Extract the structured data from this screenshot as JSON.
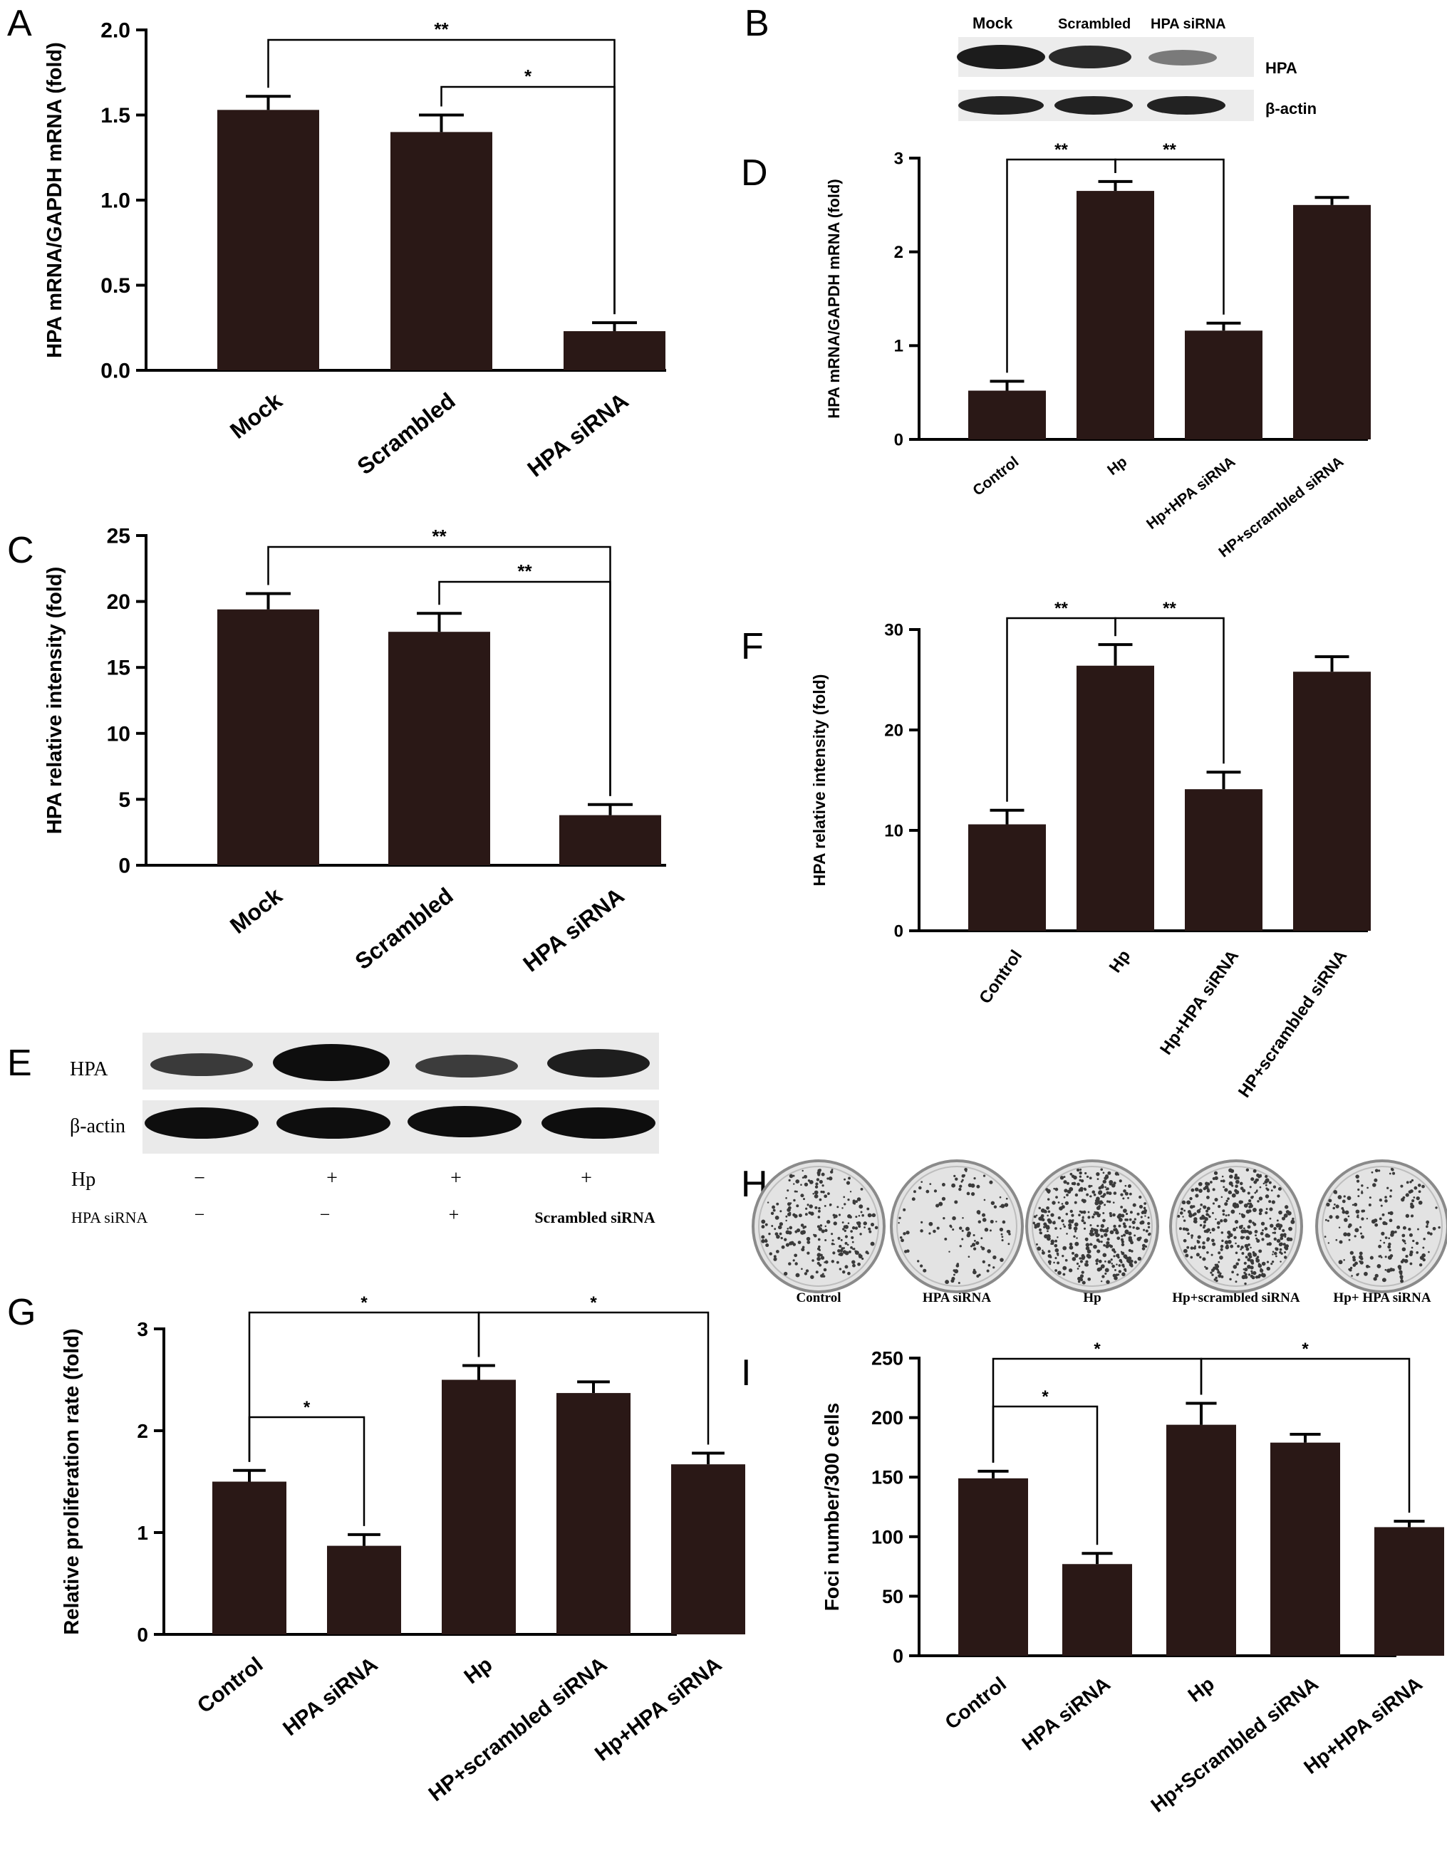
{
  "chart_data": [
    {
      "id": "A",
      "type": "bar",
      "panel_label": "A",
      "ylabel": "HPA mRNA/GAPDH mRNA (fold)",
      "categories": [
        "Mock",
        "Scrambled",
        "HPA siRNA"
      ],
      "values": [
        1.53,
        1.4,
        0.23
      ],
      "errors": [
        0.08,
        0.1,
        0.05
      ],
      "ylim": [
        0,
        2.0
      ],
      "yticks": [
        "0.0",
        "0.5",
        "1.0",
        "1.5",
        "2.0"
      ],
      "significance": [
        {
          "from": 0,
          "to": 2,
          "label": "**"
        },
        {
          "from": 1,
          "to": 2,
          "label": "*"
        }
      ]
    },
    {
      "id": "C",
      "type": "bar",
      "panel_label": "C",
      "ylabel": "HPA relative intensity (fold)",
      "categories": [
        "Mock",
        "Scrambled",
        "HPA siRNA"
      ],
      "values": [
        19.4,
        17.7,
        3.8
      ],
      "errors": [
        1.2,
        1.4,
        0.8
      ],
      "ylim": [
        0,
        25
      ],
      "yticks": [
        "0",
        "5",
        "10",
        "15",
        "20",
        "25"
      ],
      "significance": [
        {
          "from": 0,
          "to": 2,
          "label": "**"
        },
        {
          "from": 1,
          "to": 2,
          "label": "**"
        }
      ]
    },
    {
      "id": "D",
      "type": "bar",
      "panel_label": "D",
      "ylabel": "HPA mRNA/GAPDH mRNA (fold)",
      "categories": [
        "Control",
        "Hp",
        "Hp+HPA siRNA",
        "HP+scrambled siRNA"
      ],
      "values": [
        0.52,
        2.65,
        1.16,
        2.5
      ],
      "errors": [
        0.1,
        0.1,
        0.08,
        0.08
      ],
      "ylim": [
        0,
        3
      ],
      "yticks": [
        "0",
        "1",
        "2",
        "3"
      ],
      "significance": [
        {
          "from": 0,
          "to": 1,
          "label": "**"
        },
        {
          "from": 1,
          "to": 2,
          "label": "**"
        }
      ]
    },
    {
      "id": "F",
      "type": "bar",
      "panel_label": "F",
      "ylabel": "HPA relative intensity (fold)",
      "categories": [
        "Control",
        "Hp",
        "Hp+HPA siRNA",
        "HP+scrambled siRNA"
      ],
      "values": [
        10.6,
        26.4,
        14.1,
        25.8
      ],
      "errors": [
        1.4,
        2.1,
        1.7,
        1.5
      ],
      "ylim": [
        0,
        30
      ],
      "yticks": [
        "0",
        "10",
        "20",
        "30"
      ],
      "significance": [
        {
          "from": 0,
          "to": 1,
          "label": "**"
        },
        {
          "from": 1,
          "to": 2,
          "label": "**"
        }
      ]
    },
    {
      "id": "G",
      "type": "bar",
      "panel_label": "G",
      "ylabel": "Relative proliferation rate (fold)",
      "categories": [
        "Control",
        "HPA siRNA",
        "Hp",
        "HP+scrambled siRNA",
        "Hp+HPA siRNA"
      ],
      "values": [
        1.5,
        0.87,
        2.5,
        2.37,
        1.67
      ],
      "errors": [
        0.11,
        0.11,
        0.14,
        0.11,
        0.11
      ],
      "ylim": [
        0,
        3
      ],
      "yticks": [
        "0",
        "1",
        "2",
        "3"
      ],
      "significance": [
        {
          "from": 0,
          "to": 2,
          "label": "*"
        },
        {
          "from": 0,
          "to": 1,
          "label": "*"
        },
        {
          "from": 2,
          "to": 4,
          "label": "*"
        }
      ]
    },
    {
      "id": "I",
      "type": "bar",
      "panel_label": "I",
      "ylabel": "Foci number/300 cells",
      "categories": [
        "Control",
        "HPA siRNA",
        "Hp",
        "Hp+Scrambled siRNA",
        "Hp+HPA siRNA"
      ],
      "values": [
        149,
        77,
        194,
        179,
        108
      ],
      "errors": [
        6,
        9,
        18,
        7,
        5
      ],
      "ylim": [
        0,
        250
      ],
      "yticks": [
        "0",
        "50",
        "100",
        "150",
        "200",
        "250"
      ],
      "significance": [
        {
          "from": 0,
          "to": 2,
          "label": "*"
        },
        {
          "from": 0,
          "to": 1,
          "label": "*"
        },
        {
          "from": 2,
          "to": 4,
          "label": "*"
        }
      ]
    }
  ],
  "blots": {
    "B": {
      "panel_label": "B",
      "lanes": [
        "Mock",
        "Scrambled",
        "HPA siRNA"
      ],
      "rows": [
        "HPA",
        "β-actin"
      ]
    },
    "E": {
      "panel_label": "E",
      "rows": [
        "HPA",
        "β-actin"
      ],
      "conditions": [
        {
          "label": "Hp",
          "values": [
            "−",
            "+",
            "+",
            "+"
          ]
        },
        {
          "label": "HPA siRNA",
          "values": [
            "−",
            "−",
            "+",
            "Scrambled siRNA"
          ]
        }
      ]
    }
  },
  "colonies": {
    "panel_label": "H",
    "dishes": [
      "Control",
      "HPA siRNA",
      "Hp",
      "Hp+scrambled siRNA",
      "Hp+ HPA siRNA"
    ]
  }
}
